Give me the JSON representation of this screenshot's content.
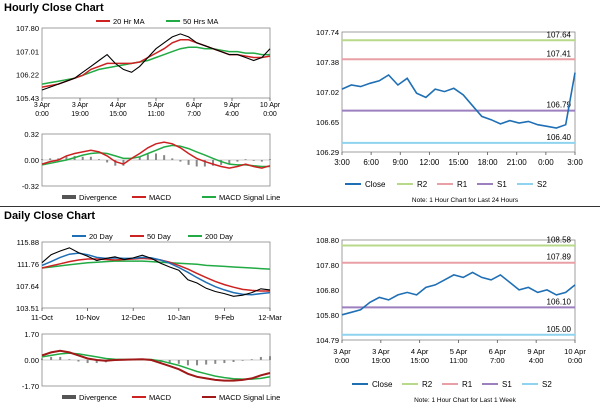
{
  "sections": {
    "hourly_title": "Hourly Close Chart",
    "daily_title": "Daily Close Chart"
  },
  "colors": {
    "close": "#1f6fb5",
    "ma_short": "#cc2222",
    "ma_long": "#22aa44",
    "r2": "#b9d98a",
    "r1": "#e8a0a6",
    "s1": "#9b7fbf",
    "s2": "#8fd3ef",
    "divergence": "#888888"
  },
  "chart_data": [
    {
      "id": "hourly_price",
      "type": "line",
      "legend": [
        "20 Hr MA",
        "50 Hrs MA"
      ],
      "yticks": [
        "107.80",
        "107.01",
        "106.22",
        "105.43"
      ],
      "ylim": [
        105.43,
        107.8
      ],
      "xticks": [
        "3 Apr\n0:00",
        "3 Apr\n19:00",
        "4 Apr\n15:00",
        "5 Apr\n11:00",
        "6 Apr\n7:00",
        "9 Apr\n4:00",
        "10 Apr\n0:00"
      ],
      "close": [
        105.7,
        105.8,
        105.9,
        106.0,
        106.1,
        106.3,
        106.5,
        106.7,
        106.9,
        106.6,
        106.4,
        106.3,
        106.5,
        106.8,
        107.1,
        107.3,
        107.5,
        107.6,
        107.5,
        107.3,
        107.2,
        107.1,
        107.0,
        106.9,
        106.9,
        106.8,
        106.7,
        106.8,
        107.1
      ],
      "ma20": [
        105.8,
        105.85,
        105.9,
        106.0,
        106.1,
        106.2,
        106.4,
        106.5,
        106.6,
        106.6,
        106.6,
        106.6,
        106.65,
        106.8,
        106.95,
        107.1,
        107.3,
        107.4,
        107.4,
        107.3,
        107.2,
        107.1,
        107.0,
        106.9,
        106.9,
        106.85,
        106.8,
        106.8,
        106.85
      ],
      "ma50": [
        105.9,
        105.95,
        106.0,
        106.05,
        106.1,
        106.2,
        106.3,
        106.4,
        106.45,
        106.5,
        106.55,
        106.6,
        106.65,
        106.7,
        106.8,
        106.9,
        107.0,
        107.1,
        107.15,
        107.15,
        107.1,
        107.1,
        107.05,
        107.0,
        107.0,
        106.95,
        106.95,
        106.9,
        106.9
      ]
    },
    {
      "id": "hourly_macd",
      "type": "line",
      "legend": [
        "Divergence",
        "MACD",
        "MACD Signal Line"
      ],
      "yticks": [
        "0.32",
        "0.00",
        "-0.32"
      ],
      "ylim": [
        -0.32,
        0.32
      ],
      "macd": [
        -0.05,
        -0.02,
        0.0,
        0.05,
        0.08,
        0.1,
        0.12,
        0.1,
        0.05,
        -0.02,
        -0.05,
        0.02,
        0.08,
        0.15,
        0.2,
        0.22,
        0.2,
        0.15,
        0.08,
        0.02,
        -0.02,
        -0.05,
        -0.08,
        -0.1,
        -0.08,
        -0.05,
        -0.08,
        -0.1,
        -0.07
      ],
      "signal": [
        -0.06,
        -0.04,
        -0.02,
        0.0,
        0.03,
        0.06,
        0.08,
        0.09,
        0.08,
        0.05,
        0.02,
        0.02,
        0.04,
        0.08,
        0.12,
        0.16,
        0.18,
        0.17,
        0.14,
        0.1,
        0.06,
        0.02,
        -0.02,
        -0.05,
        -0.06,
        -0.06,
        -0.07,
        -0.08,
        -0.08
      ],
      "divergence": [
        0.01,
        0.02,
        0.02,
        0.05,
        0.05,
        0.04,
        0.04,
        0.01,
        -0.03,
        -0.07,
        -0.07,
        0.0,
        0.04,
        0.07,
        0.08,
        0.06,
        0.02,
        -0.02,
        -0.06,
        -0.08,
        -0.08,
        -0.07,
        -0.06,
        -0.05,
        -0.02,
        0.01,
        -0.01,
        -0.02,
        0.01
      ]
    },
    {
      "id": "hourly_levels",
      "type": "line",
      "yticks": [
        "107.74",
        "107.38",
        "107.02",
        "106.65",
        "106.29"
      ],
      "ylim": [
        106.29,
        107.74
      ],
      "xticks": [
        "3:00",
        "6:00",
        "9:00",
        "12:00",
        "15:00",
        "18:00",
        "21:00",
        "0:00",
        "3:00"
      ],
      "close": [
        107.05,
        107.1,
        107.08,
        107.12,
        107.15,
        107.22,
        107.1,
        107.18,
        107.0,
        106.95,
        107.05,
        107.02,
        107.06,
        106.98,
        106.85,
        106.72,
        106.68,
        106.63,
        106.67,
        106.64,
        106.66,
        106.62,
        106.6,
        106.58,
        106.62,
        107.25
      ],
      "levels": {
        "R2": 107.64,
        "R1": 107.41,
        "S1": 106.79,
        "S2": 106.4
      },
      "level_labels": {
        "R2": "107.64",
        "R1": "107.41",
        "S1": "106.79",
        "S2": "106.40"
      },
      "legend": [
        "Close",
        "R2",
        "R1",
        "S1",
        "S2"
      ],
      "note": "Note: 1 Hour Chart for Last 24 Hours"
    },
    {
      "id": "daily_price",
      "type": "line",
      "legend": [
        "20 Day",
        "50 Day",
        "200 Day"
      ],
      "yticks": [
        "115.88",
        "111.76",
        "107.64",
        "103.51"
      ],
      "ylim": [
        103.51,
        115.88
      ],
      "xticks": [
        "11-Oct",
        "10-Nov",
        "12-Dec",
        "10-Jan",
        "9-Feb",
        "12-Mar"
      ],
      "close": [
        112.0,
        113.5,
        114.2,
        114.8,
        113.9,
        113.2,
        112.4,
        112.8,
        113.1,
        112.6,
        112.9,
        113.4,
        112.8,
        111.9,
        111.2,
        110.6,
        108.8,
        108.2,
        107.2,
        106.6,
        106.2,
        105.7,
        105.9,
        106.4,
        107.1,
        106.9
      ],
      "ma20": [
        111.5,
        112.2,
        113.0,
        113.6,
        113.8,
        113.5,
        113.0,
        112.8,
        112.9,
        112.8,
        112.8,
        113.0,
        112.9,
        112.5,
        111.9,
        111.1,
        110.2,
        109.2,
        108.3,
        107.5,
        106.9,
        106.4,
        106.1,
        106.0,
        106.2,
        106.4
      ],
      "ma50": [
        111.0,
        111.4,
        111.8,
        112.2,
        112.5,
        112.7,
        112.7,
        112.6,
        112.5,
        112.6,
        112.7,
        112.8,
        112.7,
        112.5,
        112.1,
        111.5,
        110.8,
        110.0,
        109.2,
        108.5,
        107.9,
        107.4,
        107.0,
        106.8,
        106.7,
        106.7
      ],
      "ma200": [
        111.0,
        111.2,
        111.4,
        111.6,
        111.8,
        112.0,
        112.1,
        112.2,
        112.3,
        112.3,
        112.3,
        112.3,
        112.2,
        112.1,
        112.0,
        111.9,
        111.8,
        111.7,
        111.5,
        111.4,
        111.3,
        111.2,
        111.1,
        111.0,
        110.9,
        110.8
      ]
    },
    {
      "id": "daily_macd",
      "type": "line",
      "legend": [
        "Divergence",
        "MACD",
        "MACD Signal Line"
      ],
      "yticks": [
        "1.70",
        "0.00",
        "-1.70"
      ],
      "ylim": [
        -1.7,
        1.7
      ],
      "macd": [
        0.3,
        0.5,
        0.6,
        0.5,
        0.3,
        0.1,
        0.0,
        -0.05,
        0.0,
        0.02,
        0.03,
        0.05,
        0.0,
        -0.2,
        -0.4,
        -0.6,
        -0.9,
        -1.1,
        -1.2,
        -1.3,
        -1.35,
        -1.35,
        -1.3,
        -1.2,
        -1.0,
        -0.85
      ],
      "signal": [
        0.2,
        0.3,
        0.4,
        0.45,
        0.4,
        0.3,
        0.2,
        0.1,
        0.05,
        0.03,
        0.03,
        0.04,
        0.03,
        -0.05,
        -0.2,
        -0.35,
        -0.55,
        -0.75,
        -0.9,
        -1.05,
        -1.15,
        -1.22,
        -1.25,
        -1.25,
        -1.2,
        -1.1
      ],
      "divergence": [
        0.1,
        0.2,
        0.2,
        0.05,
        -0.1,
        -0.2,
        -0.2,
        -0.15,
        -0.05,
        -0.01,
        0.0,
        0.01,
        -0.03,
        -0.15,
        -0.2,
        -0.25,
        -0.35,
        -0.35,
        -0.3,
        -0.25,
        -0.2,
        -0.13,
        -0.05,
        0.05,
        0.2,
        0.25
      ]
    },
    {
      "id": "daily_levels",
      "type": "line",
      "yticks": [
        "108.80",
        "107.80",
        "106.80",
        "105.80",
        "104.79"
      ],
      "ylim": [
        104.79,
        108.8
      ],
      "xticks": [
        "3 Apr\n0:00",
        "3 Apr\n19:00",
        "4 Apr\n15:00",
        "5 Apr\n11:00",
        "6 Apr\n7:00",
        "9 Apr\n4:00",
        "10 Apr\n0:00"
      ],
      "close": [
        105.8,
        105.9,
        106.0,
        106.3,
        106.5,
        106.4,
        106.6,
        106.7,
        106.6,
        106.9,
        107.0,
        107.2,
        107.4,
        107.3,
        107.5,
        107.3,
        107.2,
        107.4,
        107.1,
        106.8,
        106.9,
        106.7,
        106.8,
        106.6,
        106.7,
        107.0
      ],
      "levels": {
        "R2": 108.58,
        "R1": 107.89,
        "S1": 106.1,
        "S2": 105.0
      },
      "level_labels": {
        "R2": "108.58",
        "R1": "107.89",
        "S1": "106.10",
        "S2": "105.00"
      },
      "legend": [
        "Close",
        "R2",
        "R1",
        "S1",
        "S2"
      ],
      "note": "Note: 1 Hour Chart for Last 1 Week"
    }
  ]
}
